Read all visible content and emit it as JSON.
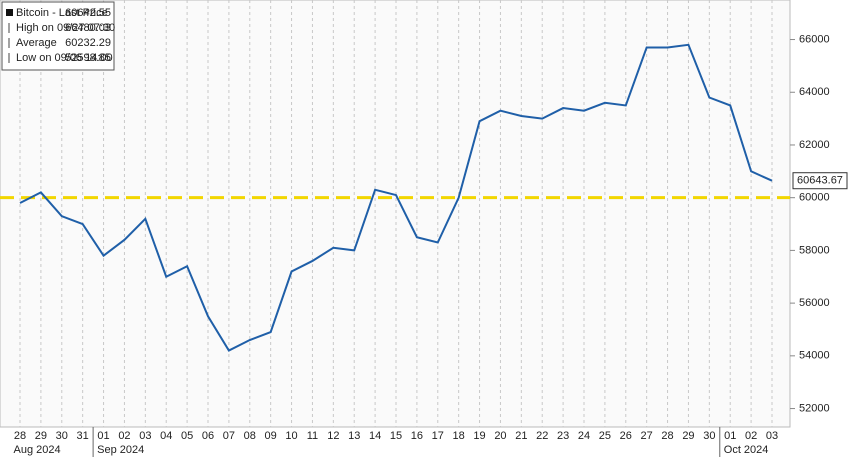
{
  "chart_data": {
    "type": "line",
    "categories": [
      "28",
      "29",
      "30",
      "31",
      "01",
      "02",
      "03",
      "04",
      "05",
      "06",
      "07",
      "08",
      "09",
      "10",
      "11",
      "12",
      "13",
      "14",
      "15",
      "16",
      "17",
      "18",
      "19",
      "20",
      "21",
      "22",
      "23",
      "24",
      "25",
      "26",
      "27",
      "28",
      "29",
      "30",
      "01",
      "02",
      "03"
    ],
    "months": [
      "Aug 2024",
      "Sep 2024",
      "Oct 2024"
    ],
    "series": [
      {
        "name": "Bitcoin - Last Price",
        "color": "#1f5fa8",
        "values": [
          59800,
          60200,
          59300,
          59000,
          57800,
          58400,
          59200,
          57000,
          57400,
          55500,
          54200,
          54600,
          54900,
          57200,
          57600,
          58100,
          58000,
          60300,
          60100,
          58500,
          58300,
          60000,
          62900,
          63300,
          63100,
          63000,
          63400,
          63300,
          63600,
          63500,
          65700,
          65700,
          65800,
          63800,
          63500,
          61000,
          60643.67
        ]
      }
    ],
    "legend": [
      {
        "label": "Bitcoin - Last Price",
        "value": 60642.55
      },
      {
        "label": "High on 09/27 07:30",
        "value": 66480.03
      },
      {
        "label": "Average",
        "value": 60232.29
      },
      {
        "label": "Low on 09/06 14:00",
        "value": 52598.85
      }
    ],
    "reference_line": {
      "value": 60000,
      "color": "#f2d600"
    },
    "ylim": [
      51300,
      67500
    ],
    "yticks": [
      52000,
      54000,
      56000,
      58000,
      60000,
      62000,
      64000,
      66000
    ],
    "grid": true
  }
}
